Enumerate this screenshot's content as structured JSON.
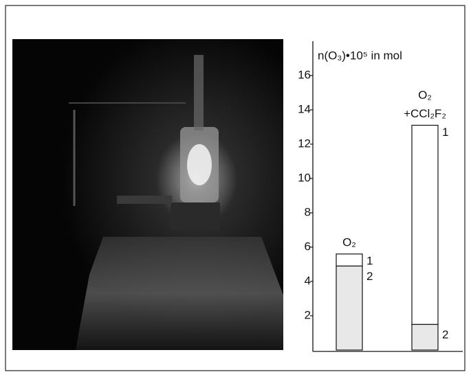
{
  "chart_data": {
    "type": "stacked_bar",
    "y_label": "n(O₃)•10⁵ in mol",
    "categories": [
      [
        "O₂"
      ],
      [
        "O₂",
        "+CCl₂F₂"
      ]
    ],
    "series": [
      {
        "name": "2",
        "color": "#e8e8e8",
        "values": [
          4.9,
          1.5
        ]
      },
      {
        "name": "1",
        "color": "#ffffff",
        "values": [
          0.7,
          11.6
        ]
      }
    ],
    "ylim": [
      0,
      18
    ],
    "yticks": [
      2,
      4,
      6,
      8,
      10,
      12,
      14,
      16
    ]
  }
}
